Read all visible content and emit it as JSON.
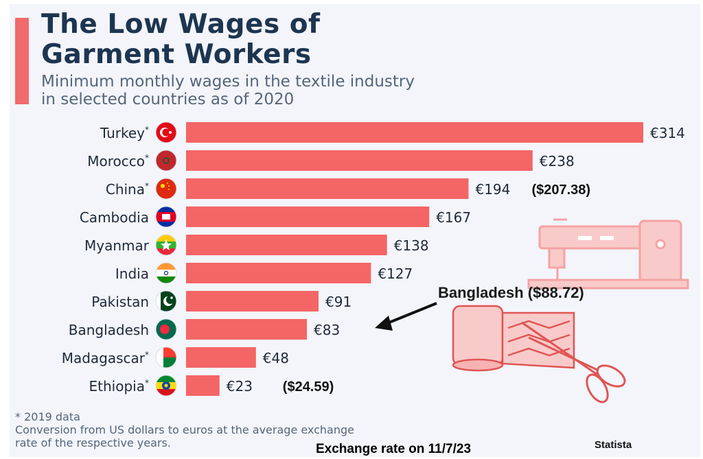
{
  "header": {
    "title": "The Low Wages of\nGarment Workers",
    "subtitle": "Minimum monthly wages in the textile industry\nin selected countries as of 2020"
  },
  "chart_data": {
    "type": "bar",
    "orientation": "horizontal",
    "categories": [
      "Turkey*",
      "Morocco*",
      "China*",
      "Cambodia",
      "Myanmar",
      "India",
      "Pakistan",
      "Bangladesh",
      "Madagascar*",
      "Ethiopia*"
    ],
    "values": [
      314,
      238,
      194,
      167,
      138,
      127,
      91,
      83,
      48,
      23
    ],
    "value_labels": [
      "€314",
      "€238",
      "€194",
      "€167",
      "€138",
      "€127",
      "€91",
      "€83",
      "€48",
      "€23"
    ],
    "flag_icons": [
      "turkey-flag-icon",
      "morocco-flag-icon",
      "china-flag-icon",
      "cambodia-flag-icon",
      "myanmar-flag-icon",
      "india-flag-icon",
      "pakistan-flag-icon",
      "bangladesh-flag-icon",
      "madagascar-flag-icon",
      "ethiopia-flag-icon"
    ],
    "xlim": [
      0,
      314
    ],
    "grid": false,
    "annotations": [
      {
        "category": "China*",
        "text": "($207.38)"
      },
      {
        "category": "Ethiopia*",
        "text": "($24.59)"
      },
      {
        "category": "Bangladesh",
        "text": "Bangladesh ($88.72)"
      }
    ],
    "bar_color": "#f46566"
  },
  "footer": {
    "note1": "* 2019 data",
    "note2": "Conversion from US dollars to euros at the average exchange",
    "note3": "rate of the respective years.",
    "source": "Statista",
    "exchange": "Exchange rate on 11/7/23"
  },
  "colors": {
    "title": "#1d3550",
    "subtitle": "#55657a",
    "accent": "#f16b6b",
    "illustration": "#f4a3a3"
  },
  "illustrations": [
    "sewing-machine-icon",
    "fabric-roll-icon",
    "scissors-icon",
    "arrow-icon"
  ]
}
